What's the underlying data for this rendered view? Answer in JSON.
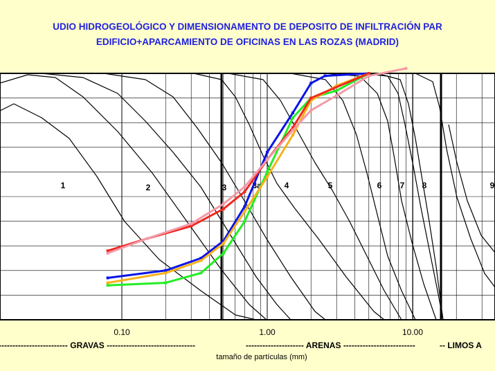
{
  "title_line1": "UDIO HIDROGEOLÓGICO Y DIMENSIONAMENTO DE DEPOSITO DE INFILTRACIÓN PAR",
  "title_line2": "EDIFICIO+APARCAMIENTO DE OFICINAS EN LAS ROZAS (MADRID)",
  "colors": {
    "background": "#ffffcc",
    "title": "#1f1fe0",
    "blue": "#0a14e6",
    "green": "#22ee22",
    "orange": "#f7b21a",
    "red": "#f0281e",
    "pink": "#f29aa8"
  },
  "chart_data": {
    "type": "line",
    "xscale": "log",
    "xdirection": "reversed",
    "xlim": [
      30,
      0.05
    ],
    "ylabel": "",
    "xlabel": "tamaño de partículas (mm)",
    "x_tick_labels": [
      {
        "value": 10,
        "label": "10.00"
      },
      {
        "value": 1,
        "label": "1.00"
      },
      {
        "value": 0.1,
        "label": "0.10"
      }
    ],
    "zone_labels": [
      "1",
      "2",
      "3",
      "3a",
      "4",
      "5",
      "6",
      "7",
      "8",
      "9"
    ],
    "soil_classes": [
      {
        "name": "GRAVAS",
        "text": "------------------------- GRAVAS --------------------------------"
      },
      {
        "name": "ARENAS",
        "text": "--------------------- ARENAS --------------------------"
      },
      {
        "name": "LIMOS",
        "text": "-- LIMOS A"
      }
    ],
    "series": [
      {
        "color": "blue",
        "points": [
          [
            5,
            100
          ],
          [
            2.5,
            99
          ],
          [
            2,
            96
          ],
          [
            1.5,
            84
          ],
          [
            1.0,
            68
          ],
          [
            0.7,
            46
          ],
          [
            0.5,
            32
          ],
          [
            0.35,
            25
          ],
          [
            0.2,
            20
          ],
          [
            0.08,
            17
          ]
        ]
      },
      {
        "color": "green",
        "points": [
          [
            5,
            100
          ],
          [
            3,
            93
          ],
          [
            2,
            90
          ],
          [
            1.5,
            82
          ],
          [
            1.0,
            60
          ],
          [
            0.7,
            40
          ],
          [
            0.5,
            27
          ],
          [
            0.35,
            19
          ],
          [
            0.2,
            15
          ],
          [
            0.08,
            14
          ]
        ]
      },
      {
        "color": "orange",
        "points": [
          [
            5,
            100
          ],
          [
            3,
            95
          ],
          [
            2,
            89
          ],
          [
            1.5,
            75
          ],
          [
            1.0,
            58
          ],
          [
            0.7,
            44
          ],
          [
            0.5,
            31
          ],
          [
            0.35,
            24
          ],
          [
            0.2,
            19
          ],
          [
            0.08,
            15
          ]
        ]
      },
      {
        "color": "red",
        "points": [
          [
            5,
            100
          ],
          [
            2,
            90
          ],
          [
            1.5,
            78
          ],
          [
            1.0,
            65
          ],
          [
            0.7,
            52
          ],
          [
            0.5,
            45
          ],
          [
            0.3,
            38
          ],
          [
            0.15,
            33
          ],
          [
            0.08,
            28
          ]
        ]
      },
      {
        "color": "pink",
        "points": [
          [
            9,
            102
          ],
          [
            5,
            99
          ],
          [
            3,
            91
          ],
          [
            2,
            85
          ],
          [
            1.5,
            77
          ],
          [
            1.0,
            65
          ],
          [
            0.7,
            54
          ],
          [
            0.5,
            47
          ],
          [
            0.3,
            39
          ],
          [
            0.15,
            33
          ],
          [
            0.08,
            27
          ]
        ]
      }
    ]
  }
}
